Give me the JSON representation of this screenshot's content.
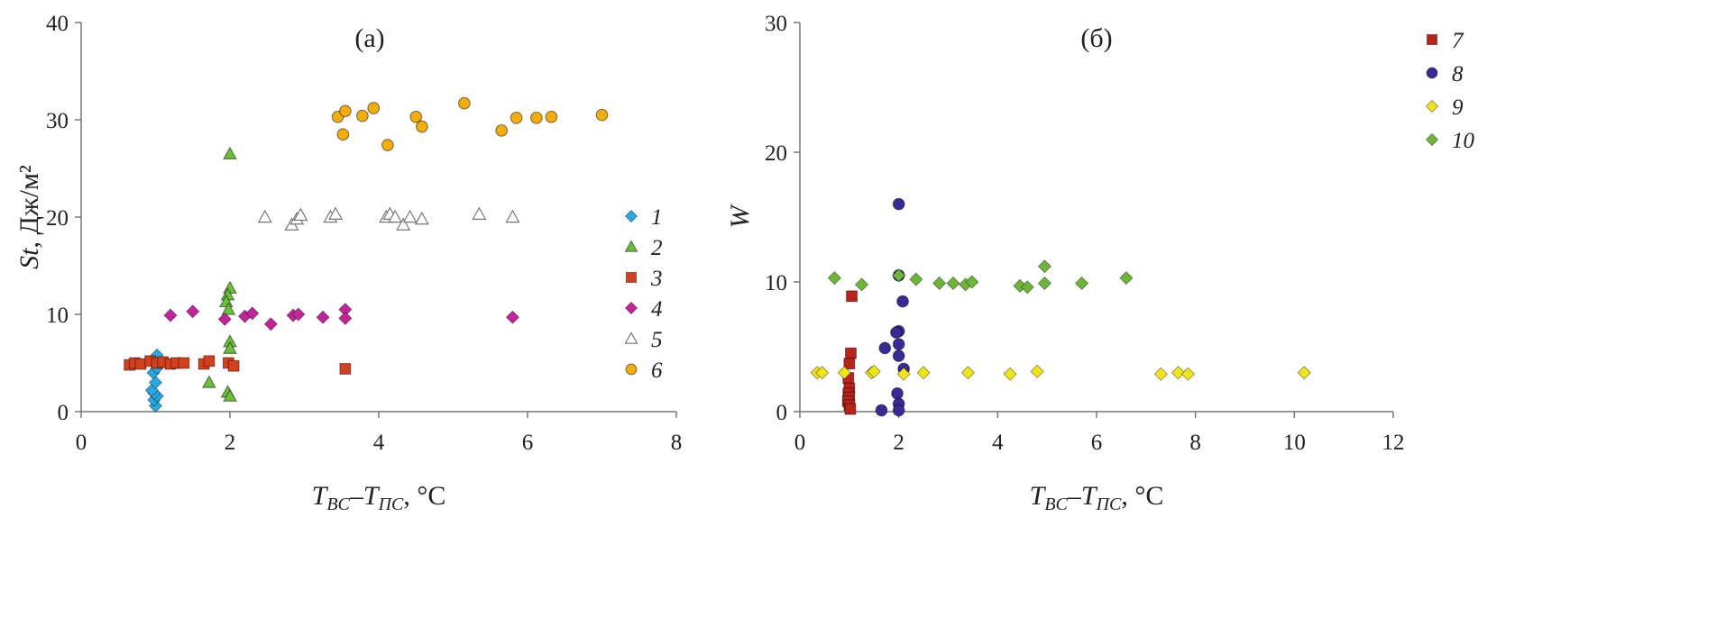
{
  "chart_data": [
    {
      "type": "scatter",
      "title": "(а)",
      "xlabel": {
        "main": "T",
        "sub1": "BC",
        "dash": "–",
        "main2": "T",
        "sub2": "ПС",
        "unit": ", °C"
      },
      "ylabel": {
        "main": "St",
        "unit": ", Дж/м²"
      },
      "xlim": [
        0,
        8
      ],
      "ylim": [
        0,
        40
      ],
      "xticks": [
        "0",
        "2",
        "4",
        "6",
        "8"
      ],
      "yticks": [
        "0",
        "10",
        "20",
        "30",
        "40"
      ],
      "grid": false,
      "legend": "right",
      "series": [
        {
          "name": "1",
          "marker": "diamond",
          "color": "#29a8e0",
          "points": [
            [
              1.0,
              0.6
            ],
            [
              0.98,
              1.2
            ],
            [
              1.02,
              1.6
            ],
            [
              0.98,
              1.9
            ],
            [
              0.95,
              2.2
            ],
            [
              1.0,
              3.0
            ],
            [
              0.97,
              4.0
            ],
            [
              1.02,
              4.5
            ],
            [
              1.0,
              5.2
            ],
            [
              1.02,
              5.8
            ]
          ]
        },
        {
          "name": "2",
          "marker": "triangle",
          "color": "#6cbf3a",
          "points": [
            [
              2.0,
              26.5
            ],
            [
              2.0,
              12.7
            ],
            [
              1.97,
              12.0
            ],
            [
              1.95,
              11.3
            ],
            [
              1.98,
              10.5
            ],
            [
              2.0,
              7.2
            ],
            [
              2.0,
              6.5
            ],
            [
              1.72,
              3.0
            ],
            [
              1.97,
              2.0
            ],
            [
              2.0,
              1.6
            ]
          ]
        },
        {
          "name": "3",
          "marker": "square",
          "color": "#d2401e",
          "points": [
            [
              0.65,
              4.8
            ],
            [
              0.72,
              5.0
            ],
            [
              0.8,
              4.9
            ],
            [
              0.93,
              5.2
            ],
            [
              1.02,
              5.0
            ],
            [
              1.1,
              5.1
            ],
            [
              1.2,
              4.9
            ],
            [
              1.28,
              5.0
            ],
            [
              1.38,
              5.0
            ],
            [
              1.65,
              4.9
            ],
            [
              1.72,
              5.2
            ],
            [
              1.98,
              5.0
            ],
            [
              2.05,
              4.7
            ],
            [
              3.55,
              4.4
            ]
          ]
        },
        {
          "name": "4",
          "marker": "diamond",
          "color": "#c0259a",
          "points": [
            [
              1.2,
              9.9
            ],
            [
              1.5,
              10.3
            ],
            [
              1.93,
              9.5
            ],
            [
              2.2,
              9.8
            ],
            [
              2.3,
              10.1
            ],
            [
              2.55,
              9.0
            ],
            [
              2.85,
              9.9
            ],
            [
              2.92,
              10.0
            ],
            [
              3.25,
              9.7
            ],
            [
              3.55,
              10.5
            ],
            [
              3.55,
              9.6
            ],
            [
              5.8,
              9.7
            ]
          ]
        },
        {
          "name": "5",
          "marker": "triangle-open",
          "color": "#ffffff",
          "points": [
            [
              2.47,
              20.0
            ],
            [
              2.83,
              19.2
            ],
            [
              2.9,
              19.8
            ],
            [
              2.95,
              20.2
            ],
            [
              3.35,
              20.0
            ],
            [
              3.42,
              20.3
            ],
            [
              4.1,
              20.0
            ],
            [
              4.15,
              20.3
            ],
            [
              4.22,
              20.0
            ],
            [
              4.33,
              19.2
            ],
            [
              4.42,
              20.0
            ],
            [
              4.58,
              19.8
            ],
            [
              5.35,
              20.3
            ],
            [
              5.8,
              20.0
            ]
          ]
        },
        {
          "name": "6",
          "marker": "circle",
          "color": "#f2ae0f",
          "points": [
            [
              3.45,
              30.3
            ],
            [
              3.52,
              28.5
            ],
            [
              3.55,
              30.9
            ],
            [
              3.78,
              30.4
            ],
            [
              3.93,
              31.2
            ],
            [
              4.12,
              27.4
            ],
            [
              4.5,
              30.3
            ],
            [
              4.58,
              29.3
            ],
            [
              5.15,
              31.7
            ],
            [
              5.65,
              28.9
            ],
            [
              5.85,
              30.2
            ],
            [
              6.12,
              30.2
            ],
            [
              6.32,
              30.3
            ],
            [
              7.0,
              30.5
            ]
          ]
        }
      ]
    },
    {
      "type": "scatter",
      "title": "(б)",
      "xlabel": {
        "main": "T",
        "sub1": "BC",
        "dash": "–",
        "main2": "T",
        "sub2": "ПС",
        "unit": ", °C"
      },
      "ylabel": {
        "main": "W",
        "unit": ""
      },
      "xlim": [
        0,
        12
      ],
      "ylim": [
        0,
        30
      ],
      "xticks": [
        "0",
        "2",
        "4",
        "6",
        "8",
        "10",
        "12"
      ],
      "yticks": [
        "0",
        "10",
        "20",
        "30"
      ],
      "grid": false,
      "legend": "top-right",
      "series": [
        {
          "name": "7",
          "marker": "square",
          "color": "#b8231b",
          "points": [
            [
              1.05,
              8.9
            ],
            [
              1.03,
              4.5
            ],
            [
              1.0,
              3.7
            ],
            [
              0.98,
              2.6
            ],
            [
              1.0,
              1.8
            ],
            [
              0.98,
              1.4
            ],
            [
              1.0,
              1.1
            ],
            [
              0.97,
              0.8
            ],
            [
              1.0,
              0.5
            ],
            [
              1.02,
              0.2
            ]
          ]
        },
        {
          "name": "8",
          "marker": "circle",
          "color": "#3a2a95",
          "points": [
            [
              2.0,
              16.0
            ],
            [
              2.08,
              8.5
            ],
            [
              2.0,
              10.5
            ],
            [
              2.0,
              6.2
            ],
            [
              1.95,
              6.1
            ],
            [
              1.72,
              4.9
            ],
            [
              2.0,
              5.2
            ],
            [
              2.0,
              4.3
            ],
            [
              2.1,
              3.3
            ],
            [
              1.97,
              1.4
            ],
            [
              1.65,
              0.1
            ],
            [
              2.0,
              0.6
            ],
            [
              2.0,
              0.1
            ]
          ]
        },
        {
          "name": "9",
          "marker": "diamond",
          "color": "#eee51a",
          "points": [
            [
              0.35,
              3.0
            ],
            [
              0.45,
              3.0
            ],
            [
              0.9,
              3.0
            ],
            [
              1.45,
              3.0
            ],
            [
              1.5,
              3.1
            ],
            [
              2.1,
              2.9
            ],
            [
              2.5,
              3.0
            ],
            [
              3.4,
              3.0
            ],
            [
              4.25,
              2.9
            ],
            [
              4.8,
              3.1
            ],
            [
              7.3,
              2.9
            ],
            [
              7.65,
              3.0
            ],
            [
              7.85,
              2.9
            ],
            [
              10.2,
              3.0
            ]
          ]
        },
        {
          "name": "10",
          "marker": "diamond",
          "color": "#6fb53a",
          "points": [
            [
              0.7,
              10.3
            ],
            [
              1.25,
              9.8
            ],
            [
              2.0,
              10.5
            ],
            [
              2.35,
              10.2
            ],
            [
              2.82,
              9.9
            ],
            [
              3.1,
              9.9
            ],
            [
              3.35,
              9.8
            ],
            [
              3.48,
              10.0
            ],
            [
              4.45,
              9.7
            ],
            [
              4.6,
              9.6
            ],
            [
              4.95,
              11.2
            ],
            [
              4.95,
              9.9
            ],
            [
              5.7,
              9.9
            ],
            [
              6.6,
              10.3
            ]
          ]
        }
      ]
    }
  ]
}
